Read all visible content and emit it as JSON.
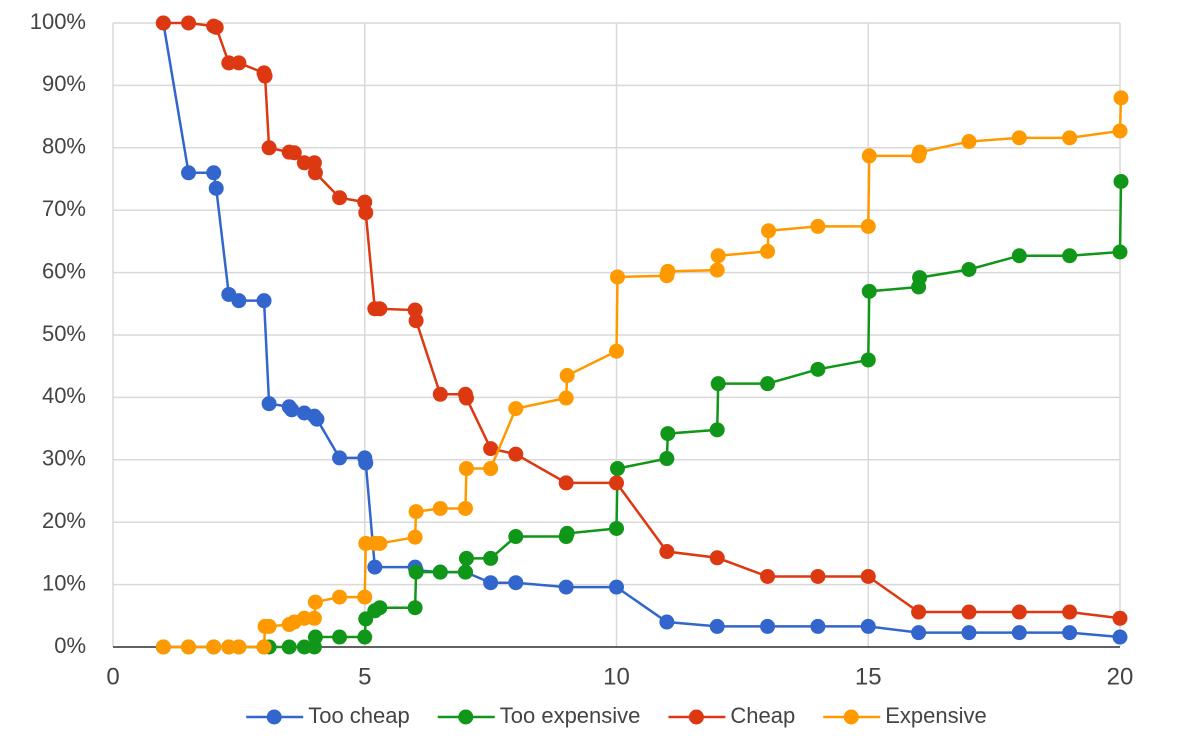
{
  "chart_data": {
    "type": "line",
    "xlim": [
      0,
      20
    ],
    "xticks": [
      0,
      5,
      10,
      15,
      20
    ],
    "ylim": [
      0,
      100
    ],
    "yticks": [
      {
        "value": 0,
        "label": "0%"
      },
      {
        "value": 10,
        "label": "10%"
      },
      {
        "value": 20,
        "label": "20%"
      },
      {
        "value": 30,
        "label": "30%"
      },
      {
        "value": 40,
        "label": "40%"
      },
      {
        "value": 50,
        "label": "50%"
      },
      {
        "value": 60,
        "label": "60%"
      },
      {
        "value": 70,
        "label": "70%"
      },
      {
        "value": 80,
        "label": "80%"
      },
      {
        "value": 90,
        "label": "90%"
      },
      {
        "value": 100,
        "label": "100%"
      }
    ],
    "grid": true,
    "legend": "bottom",
    "series": [
      {
        "name": "Too cheap",
        "color": "#3366cc",
        "x": [
          1,
          1.5,
          2,
          2.05,
          2.3,
          2.5,
          3,
          3.1,
          3.5,
          3.55,
          3.8,
          4,
          4.05,
          4.5,
          5,
          5.02,
          5.2,
          6,
          6.02,
          6.5,
          7,
          7.5,
          8,
          9,
          10,
          11,
          12,
          13,
          14,
          15,
          16,
          17,
          18,
          19,
          20
        ],
        "values": [
          100,
          76,
          76,
          73.5,
          56.5,
          55.5,
          55.5,
          39,
          38.5,
          38,
          37.5,
          37,
          36.5,
          30.3,
          30.3,
          29.5,
          12.8,
          12.8,
          12.3,
          12,
          12,
          10.3,
          10.3,
          9.6,
          9.6,
          4,
          3.3,
          3.3,
          3.3,
          3.3,
          2.3,
          2.3,
          2.3,
          2.3,
          1.6
        ]
      },
      {
        "name": "Too expensive",
        "color": "#109618",
        "x": [
          1,
          1.5,
          2,
          2.3,
          2.5,
          3,
          3.1,
          3.5,
          3.8,
          4,
          4.02,
          4.5,
          5,
          5.02,
          5.2,
          5.3,
          6,
          6.02,
          6.5,
          7,
          7.02,
          7.5,
          8,
          9,
          9.02,
          10,
          10.02,
          11,
          11.02,
          12,
          12.02,
          13,
          14,
          15,
          15.02,
          16,
          16.02,
          17,
          18,
          19,
          20,
          20.02
        ],
        "values": [
          0,
          0,
          0,
          0,
          0,
          0,
          0,
          0,
          0,
          0,
          1.6,
          1.6,
          1.6,
          4.5,
          5.8,
          6.3,
          6.3,
          12,
          12,
          12,
          14.2,
          14.2,
          17.7,
          17.7,
          18.2,
          19,
          28.6,
          30.2,
          34.2,
          34.8,
          42.2,
          42.2,
          44.5,
          46,
          57,
          57.7,
          59.2,
          60.5,
          62.7,
          62.7,
          63.3,
          74.6
        ]
      },
      {
        "name": "Cheap",
        "color": "#dc3912",
        "x": [
          1,
          1.5,
          2,
          2.05,
          2.3,
          2.5,
          3,
          3.02,
          3.1,
          3.5,
          3.6,
          3.8,
          4,
          4.02,
          4.5,
          5,
          5.02,
          5.2,
          5.3,
          6,
          6.02,
          6.5,
          7,
          7.02,
          7.5,
          8,
          9,
          10,
          11,
          12,
          13,
          14,
          15,
          16,
          17,
          18,
          19,
          20
        ],
        "values": [
          100,
          100,
          99.5,
          99.3,
          93.6,
          93.6,
          92,
          91.5,
          80,
          79.3,
          79.2,
          77.6,
          77.6,
          76,
          72,
          71.3,
          69.6,
          54.2,
          54.2,
          54,
          52.3,
          40.5,
          40.5,
          39.9,
          31.8,
          30.9,
          26.3,
          26.3,
          15.3,
          14.3,
          11.3,
          11.3,
          11.3,
          5.6,
          5.6,
          5.6,
          5.6,
          4.6
        ]
      },
      {
        "name": "Expensive",
        "color": "#ff9900",
        "x": [
          1,
          1.5,
          2,
          2.3,
          2.5,
          3,
          3.02,
          3.1,
          3.5,
          3.6,
          3.8,
          4,
          4.02,
          4.5,
          5,
          5.02,
          5.2,
          5.3,
          6,
          6.02,
          6.5,
          7,
          7.02,
          7.5,
          8,
          9,
          9.02,
          10,
          10.02,
          11,
          11.02,
          12,
          12.02,
          13,
          13.02,
          14,
          15,
          15.02,
          16,
          16.02,
          17,
          18,
          19,
          20,
          20.02
        ],
        "values": [
          0,
          0,
          0,
          0,
          0,
          0,
          3.3,
          3.3,
          3.6,
          4,
          4.6,
          4.6,
          7.2,
          8,
          8,
          16.6,
          16.6,
          16.6,
          17.6,
          21.7,
          22.2,
          22.2,
          28.6,
          28.6,
          38.2,
          39.9,
          43.5,
          47.4,
          59.3,
          59.5,
          60.2,
          60.4,
          62.7,
          63.4,
          66.7,
          67.4,
          67.4,
          78.7,
          78.7,
          79.3,
          81,
          81.6,
          81.6,
          82.7,
          88
        ]
      }
    ]
  }
}
